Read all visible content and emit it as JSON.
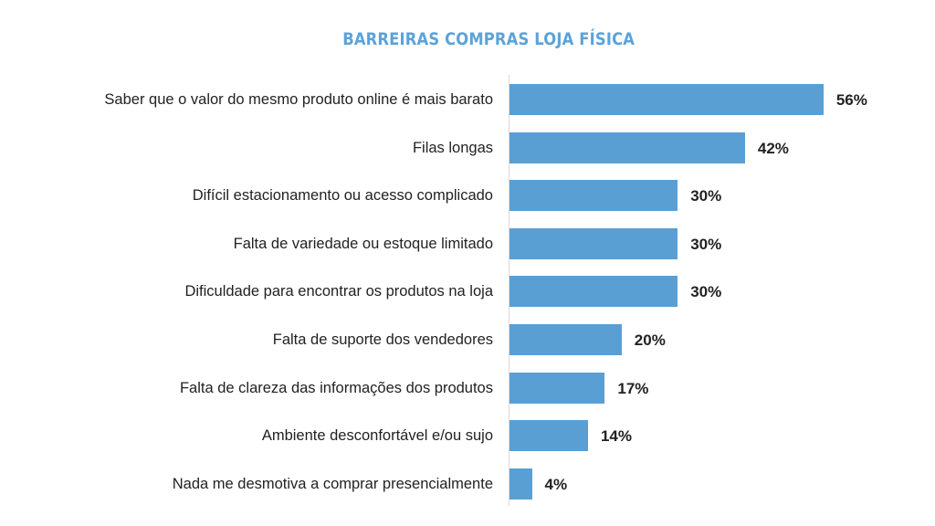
{
  "chart_data": {
    "type": "bar",
    "orientation": "horizontal",
    "title": "BARREIRAS COMPRAS LOJA FÍSICA",
    "xlabel": "",
    "ylabel": "",
    "grid": false,
    "legend": null,
    "categories": [
      "Saber que o valor do mesmo produto online é mais barato",
      "Filas longas",
      "Difícil estacionamento ou acesso complicado",
      "Falta de variedade ou estoque limitado",
      "Dificuldade para encontrar os produtos na loja",
      "Falta de suporte dos vendedores",
      "Falta de clareza das informações dos produtos",
      "Ambiente desconfortável e/ou sujo",
      "Nada me desmotiva a comprar presencialmente"
    ],
    "values": [
      56,
      42,
      30,
      30,
      30,
      20,
      17,
      14,
      4
    ],
    "value_labels": [
      "56%",
      "42%",
      "30%",
      "30%",
      "30%",
      "20%",
      "17%",
      "14%",
      "4%"
    ],
    "unit": "%",
    "bar_color": "#5a9fd4",
    "title_color": "#5ba3d9"
  }
}
